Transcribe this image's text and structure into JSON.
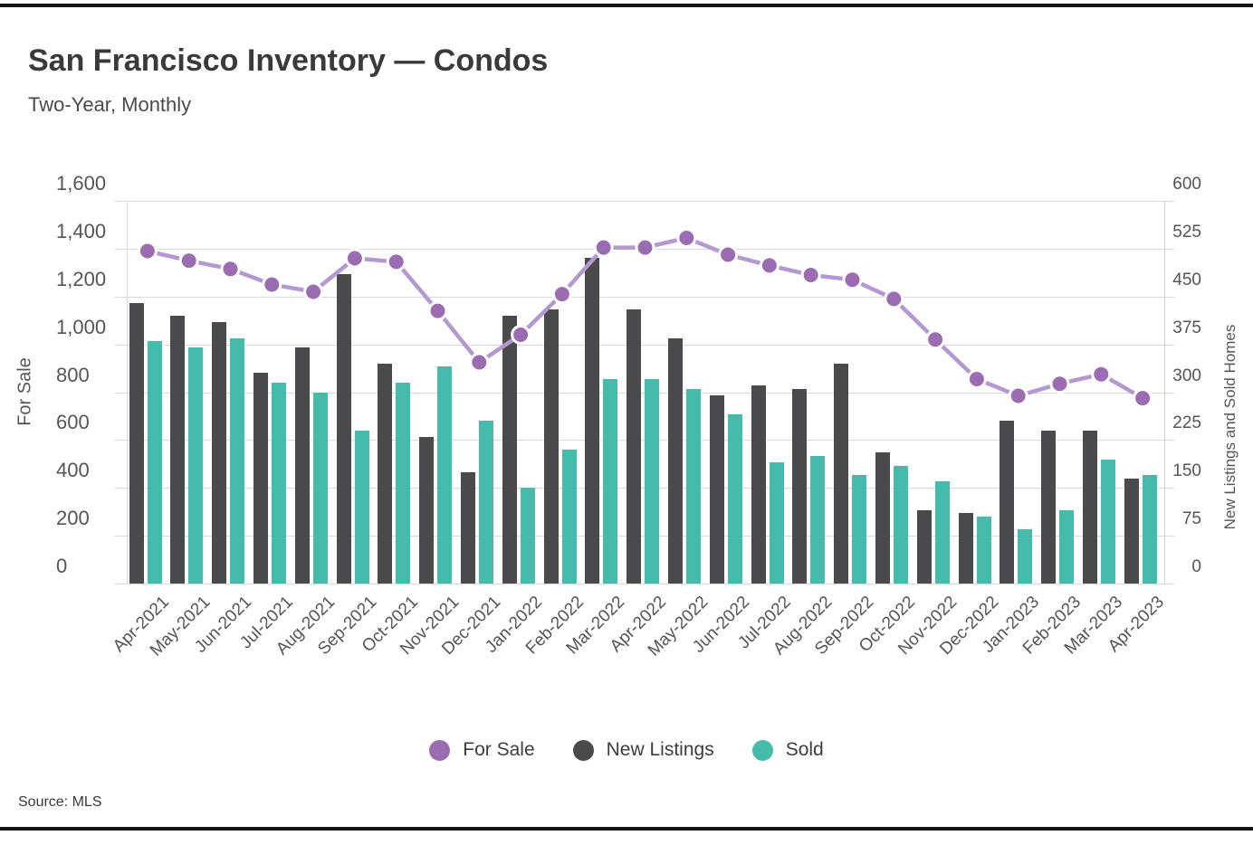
{
  "page": {
    "title": "San Francisco Inventory — Condos",
    "subtitle": "Two-Year, Monthly",
    "source": "Source: MLS"
  },
  "chart_data": {
    "type": "bar",
    "subtype": "grouped-bars-with-line-overlay",
    "title": "San Francisco Inventory — Condos",
    "subtitle": "Two-Year, Monthly",
    "grid": true,
    "legend_position": "bottom-center",
    "categories": [
      "Apr-2021",
      "May-2021",
      "Jun-2021",
      "Jul-2021",
      "Aug-2021",
      "Sep-2021",
      "Oct-2021",
      "Nov-2021",
      "Dec-2021",
      "Jan-2022",
      "Feb-2022",
      "Mar-2022",
      "Apr-2022",
      "May-2022",
      "Jun-2022",
      "Jul-2022",
      "Aug-2022",
      "Sep-2022",
      "Oct-2022",
      "Nov-2022",
      "Dec-2022",
      "Jan-2023",
      "Feb-2023",
      "Mar-2023",
      "Apr-2023"
    ],
    "series": [
      {
        "name": "For Sale",
        "type": "line",
        "axis": "left",
        "color": "#9b6cb2",
        "line_color": "#b398d1",
        "values": [
          1390,
          1350,
          1315,
          1250,
          1220,
          1360,
          1345,
          1140,
          925,
          1040,
          1210,
          1405,
          1405,
          1445,
          1375,
          1330,
          1290,
          1270,
          1190,
          1020,
          855,
          785,
          835,
          875,
          775
        ]
      },
      {
        "name": "New Listings",
        "type": "bar",
        "axis": "right",
        "color": "#4a4a4c",
        "values": [
          440,
          420,
          410,
          330,
          370,
          485,
          345,
          230,
          175,
          420,
          430,
          510,
          430,
          385,
          295,
          310,
          305,
          345,
          205,
          115,
          110,
          255,
          240,
          240,
          165
        ]
      },
      {
        "name": "Sold",
        "type": "bar",
        "axis": "right",
        "color": "#45bcab",
        "values": [
          380,
          370,
          385,
          315,
          300,
          240,
          315,
          340,
          255,
          150,
          210,
          320,
          320,
          305,
          265,
          190,
          200,
          170,
          185,
          160,
          105,
          85,
          115,
          195,
          170
        ]
      }
    ],
    "left_axis": {
      "label": "For Sale",
      "min": 0,
      "max": 1600,
      "ticks": [
        "0",
        "200",
        "400",
        "600",
        "800",
        "1,000",
        "1,200",
        "1,400",
        "1,600"
      ]
    },
    "right_axis": {
      "label": "New Listings and Sold Homes",
      "min": 0,
      "max": 600,
      "ticks": [
        "0",
        "75",
        "150",
        "225",
        "300",
        "375",
        "450",
        "525",
        "600"
      ]
    }
  }
}
